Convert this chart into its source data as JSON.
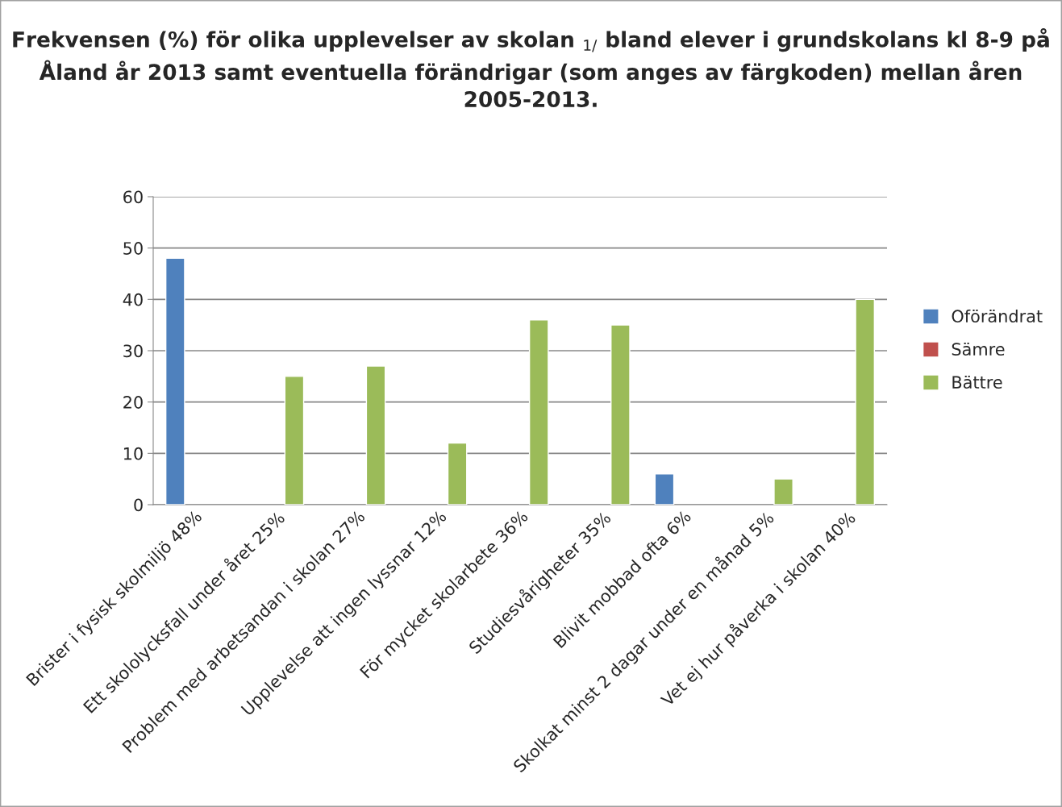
{
  "chart_data": {
    "type": "bar",
    "title": "Frekvensen (%) för olika upplevelser av skolan $_{1/}$ bland elever i grundskolans kl 8-9 på Åland år 2013 samt eventuella förändrigar (som anges av färgkoden) mellan åren 2005-2013.",
    "categories": [
      "Brister i fysisk skolmiljö 48%",
      "Ett skololycksfall under året 25%",
      "Problem med arbetsandan i skolan 27%",
      "Upplevelse att ingen lyssnar 12%",
      "För mycket skolarbete 36%",
      "Studiesvårigheter 35%",
      "Blivit mobbad ofta 6%",
      "Skolkat minst 2 dagar under en månad 5%",
      "Vet ej hur påverka i skolan 40%"
    ],
    "series": [
      {
        "name": "Oförändrat",
        "color": "#4f81bd",
        "values": [
          48,
          null,
          null,
          null,
          null,
          null,
          6,
          null,
          null
        ]
      },
      {
        "name": "Sämre",
        "color": "#c0504d",
        "values": [
          null,
          null,
          null,
          null,
          null,
          null,
          null,
          null,
          null
        ]
      },
      {
        "name": "Bättre",
        "color": "#9bbb59",
        "values": [
          null,
          25,
          27,
          12,
          36,
          35,
          null,
          5,
          40
        ]
      }
    ],
    "ylim": [
      0,
      60
    ],
    "yticks": [
      0,
      10,
      20,
      30,
      40,
      50,
      60
    ],
    "grid": "y",
    "legend": "right"
  }
}
